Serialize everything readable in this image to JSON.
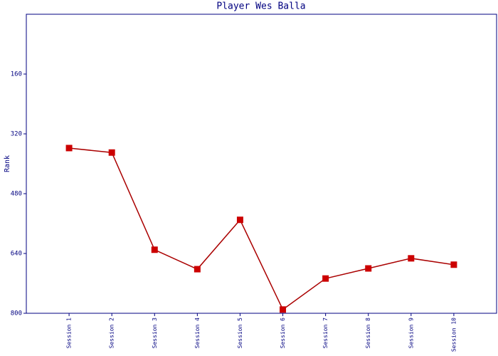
{
  "chart_data": {
    "type": "line",
    "title": "Player Wes Balla",
    "y_label": "Rank",
    "categories": [
      "Session 1",
      "Session 2",
      "Session 3",
      "Session 4",
      "Session 5",
      "Session 6",
      "Session 7",
      "Session 8",
      "Session 9",
      "Session 10"
    ],
    "series": [
      {
        "name": "Rank",
        "color": "#aa0000",
        "marker_color": "#cc0000",
        "values": [
          358,
          370,
          630,
          682,
          550,
          790,
          707,
          680,
          653,
          670
        ]
      }
    ],
    "ylim": [
      800,
      0
    ],
    "yticks": [
      160,
      320,
      480,
      640,
      800
    ]
  }
}
